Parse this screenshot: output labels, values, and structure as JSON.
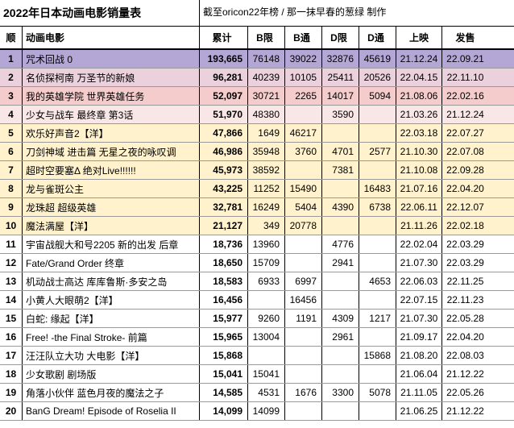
{
  "title": "2022年日本动画电影销量表",
  "subtitle": "截至oricon22年榜 / 那一抹早春的葱绿 制作",
  "headers": {
    "rank": "顺",
    "name": "动画电影",
    "total": "累计",
    "bLtd": "B限",
    "bReg": "B通",
    "dLtd": "D限",
    "dReg": "D通",
    "release": "上映",
    "sale": "发售"
  },
  "row_colors": {
    "purple": "#b4a7d6",
    "pink1": "#ead1dc",
    "pink2": "#f4cccc",
    "pink3": "#f9e6e6",
    "yellow": "#fff2cc",
    "white": "#ffffff"
  },
  "rows": [
    {
      "rank": "1",
      "name": "咒术回战 0",
      "total": "193,665",
      "bLtd": "76148",
      "bReg": "39022",
      "dLtd": "32876",
      "dReg": "45619",
      "release": "21.12.24",
      "sale": "22.09.21",
      "color": "purple"
    },
    {
      "rank": "2",
      "name": "名侦探柯南 万圣节的新娘",
      "total": "96,281",
      "bLtd": "40239",
      "bReg": "10105",
      "dLtd": "25411",
      "dReg": "20526",
      "release": "22.04.15",
      "sale": "22.11.10",
      "color": "pink1"
    },
    {
      "rank": "3",
      "name": "我的英雄学院 世界英雄任务",
      "total": "52,097",
      "bLtd": "30721",
      "bReg": "2265",
      "dLtd": "14017",
      "dReg": "5094",
      "release": "21.08.06",
      "sale": "22.02.16",
      "color": "pink2"
    },
    {
      "rank": "4",
      "name": "少女与战车 最终章 第3话",
      "total": "51,970",
      "bLtd": "48380",
      "bReg": "",
      "dLtd": "3590",
      "dReg": "",
      "release": "21.03.26",
      "sale": "21.12.24",
      "color": "pink3"
    },
    {
      "rank": "5",
      "name": "欢乐好声音2【洋】",
      "total": "47,866",
      "bLtd": "1649",
      "bReg": "46217",
      "dLtd": "",
      "dReg": "",
      "release": "22.03.18",
      "sale": "22.07.27",
      "color": "yellow"
    },
    {
      "rank": "6",
      "name": "刀剑神域 进击篇 无星之夜的咏叹调",
      "total": "46,986",
      "bLtd": "35948",
      "bReg": "3760",
      "dLtd": "4701",
      "dReg": "2577",
      "release": "21.10.30",
      "sale": "22.07.08",
      "color": "yellow"
    },
    {
      "rank": "7",
      "name": "超时空要塞Δ 绝对Live!!!!!!",
      "total": "45,973",
      "bLtd": "38592",
      "bReg": "",
      "dLtd": "7381",
      "dReg": "",
      "release": "21.10.08",
      "sale": "22.09.28",
      "color": "yellow"
    },
    {
      "rank": "8",
      "name": "龙与雀斑公主",
      "total": "43,225",
      "bLtd": "11252",
      "bReg": "15490",
      "dLtd": "",
      "dReg": "16483",
      "release": "21.07.16",
      "sale": "22.04.20",
      "color": "yellow"
    },
    {
      "rank": "9",
      "name": "龙珠超 超级英雄",
      "total": "32,781",
      "bLtd": "16249",
      "bReg": "5404",
      "dLtd": "4390",
      "dReg": "6738",
      "release": "22.06.11",
      "sale": "22.12.07",
      "color": "yellow"
    },
    {
      "rank": "10",
      "name": "魔法满屋【洋】",
      "total": "21,127",
      "bLtd": "349",
      "bReg": "20778",
      "dLtd": "",
      "dReg": "",
      "release": "21.11.26",
      "sale": "22.02.18",
      "color": "yellow"
    },
    {
      "rank": "11",
      "name": "宇宙战舰大和号2205 新的出发 后章",
      "total": "18,736",
      "bLtd": "13960",
      "bReg": "",
      "dLtd": "4776",
      "dReg": "",
      "release": "22.02.04",
      "sale": "22.03.29",
      "color": "white"
    },
    {
      "rank": "12",
      "name": "Fate/Grand Order 终章",
      "total": "18,650",
      "bLtd": "15709",
      "bReg": "",
      "dLtd": "2941",
      "dReg": "",
      "release": "21.07.30",
      "sale": "22.03.29",
      "color": "white"
    },
    {
      "rank": "13",
      "name": "机动战士高达 库库鲁斯·多安之岛",
      "total": "18,583",
      "bLtd": "6933",
      "bReg": "6997",
      "dLtd": "",
      "dReg": "4653",
      "release": "22.06.03",
      "sale": "22.11.25",
      "color": "white"
    },
    {
      "rank": "14",
      "name": "小黄人大眼萌2【洋】",
      "total": "16,456",
      "bLtd": "",
      "bReg": "16456",
      "dLtd": "",
      "dReg": "",
      "release": "22.07.15",
      "sale": "22.11.23",
      "color": "white"
    },
    {
      "rank": "15",
      "name": "白蛇: 缘起【洋】",
      "total": "15,977",
      "bLtd": "9260",
      "bReg": "1191",
      "dLtd": "4309",
      "dReg": "1217",
      "release": "21.07.30",
      "sale": "22.05.28",
      "color": "white"
    },
    {
      "rank": "16",
      "name": "Free! -the Final Stroke- 前篇",
      "total": "15,965",
      "bLtd": "13004",
      "bReg": "",
      "dLtd": "2961",
      "dReg": "",
      "release": "21.09.17",
      "sale": "22.04.20",
      "color": "white"
    },
    {
      "rank": "17",
      "name": "汪汪队立大功 大电影【洋】",
      "total": "15,868",
      "bLtd": "",
      "bReg": "",
      "dLtd": "",
      "dReg": "15868",
      "release": "21.08.20",
      "sale": "22.08.03",
      "color": "white"
    },
    {
      "rank": "18",
      "name": "少女歌剧 剧场版",
      "total": "15,041",
      "bLtd": "15041",
      "bReg": "",
      "dLtd": "",
      "dReg": "",
      "release": "21.06.04",
      "sale": "21.12.22",
      "color": "white"
    },
    {
      "rank": "19",
      "name": "角落小伙伴 蓝色月夜的魔法之子",
      "total": "14,585",
      "bLtd": "4531",
      "bReg": "1676",
      "dLtd": "3300",
      "dReg": "5078",
      "release": "21.11.05",
      "sale": "22.05.26",
      "color": "white"
    },
    {
      "rank": "20",
      "name": "BanG Dream! Episode of Roselia II",
      "total": "14,099",
      "bLtd": "14099",
      "bReg": "",
      "dLtd": "",
      "dReg": "",
      "release": "21.06.25",
      "sale": "21.12.22",
      "color": "white"
    }
  ]
}
